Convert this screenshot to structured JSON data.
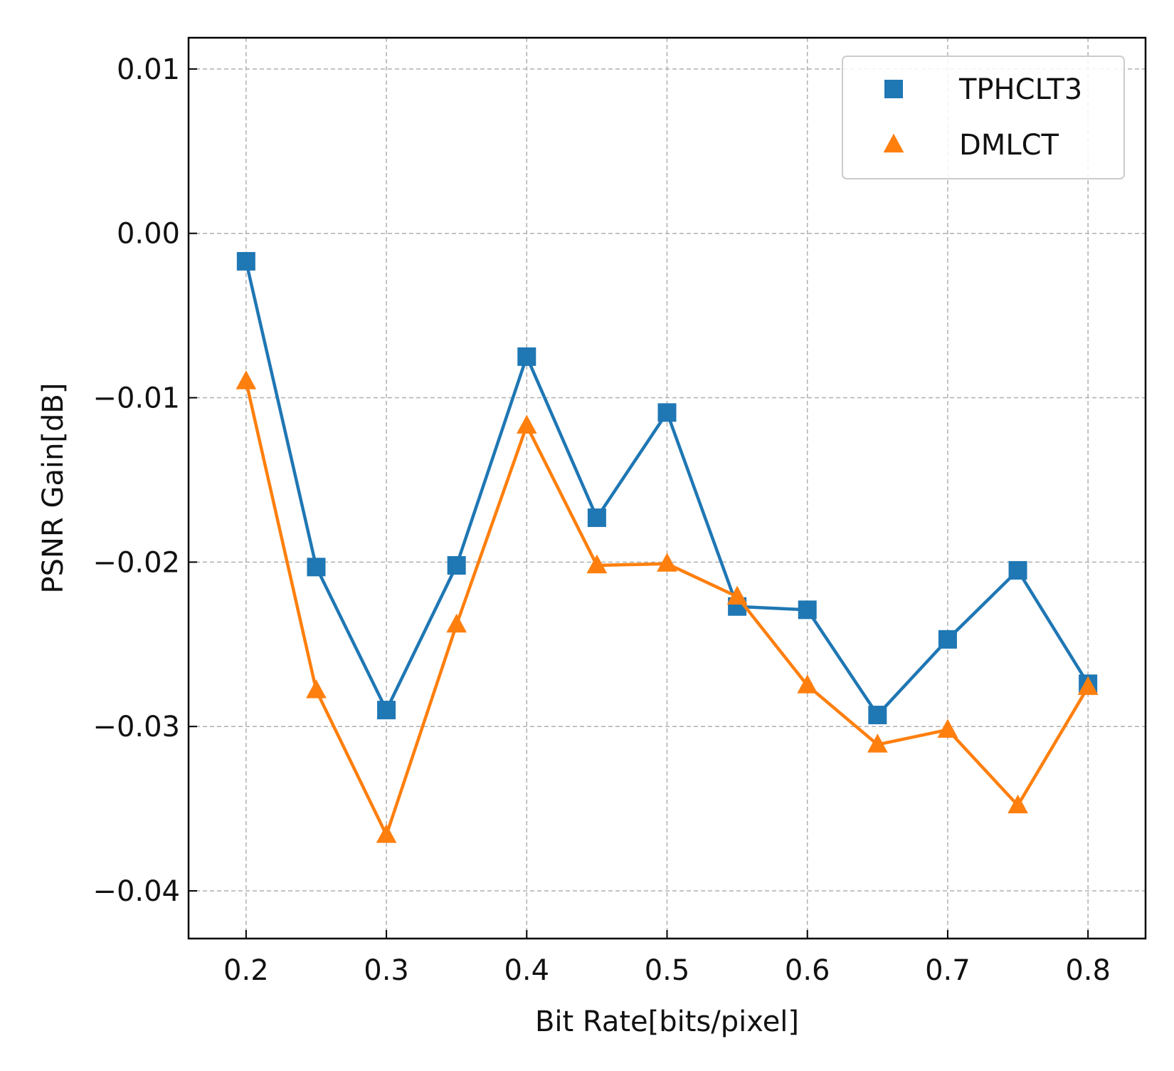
{
  "chart_data": {
    "type": "line",
    "title": "",
    "xlabel": "Bit Rate[bits/pixel]",
    "ylabel": "PSNR Gain[dB]",
    "xlim": [
      0.159,
      0.841
    ],
    "ylim": [
      -0.0429,
      0.0119
    ],
    "xticks": [
      0.2,
      0.3,
      0.4,
      0.5,
      0.6,
      0.7,
      0.8
    ],
    "xtick_labels": [
      "0.2",
      "0.3",
      "0.4",
      "0.5",
      "0.6",
      "0.7",
      "0.8"
    ],
    "yticks": [
      0.01,
      0.0,
      -0.01,
      -0.02,
      -0.03,
      -0.04
    ],
    "ytick_labels": [
      "0.01",
      "0.00",
      "−0.01",
      "−0.02",
      "−0.03",
      "−0.04"
    ],
    "grid": true,
    "legend_position": "top-right",
    "x": [
      0.2,
      0.25,
      0.3,
      0.35,
      0.4,
      0.45,
      0.5,
      0.55,
      0.6,
      0.65,
      0.7,
      0.75,
      0.8
    ],
    "series": [
      {
        "name": "TPHCLT3",
        "marker": "square",
        "color": "#1f77b4",
        "values": [
          -0.0017,
          -0.0203,
          -0.029,
          -0.0202,
          -0.0075,
          -0.0173,
          -0.0109,
          -0.0227,
          -0.0229,
          -0.0293,
          -0.0247,
          -0.0205,
          -0.0274
        ]
      },
      {
        "name": "DMLCT",
        "marker": "triangle",
        "color": "#ff7f0e",
        "values": [
          -0.009,
          -0.0278,
          -0.0366,
          -0.0238,
          -0.0117,
          -0.0202,
          -0.0201,
          -0.0221,
          -0.0275,
          -0.0311,
          -0.0302,
          -0.0348,
          -0.0276
        ]
      }
    ]
  }
}
